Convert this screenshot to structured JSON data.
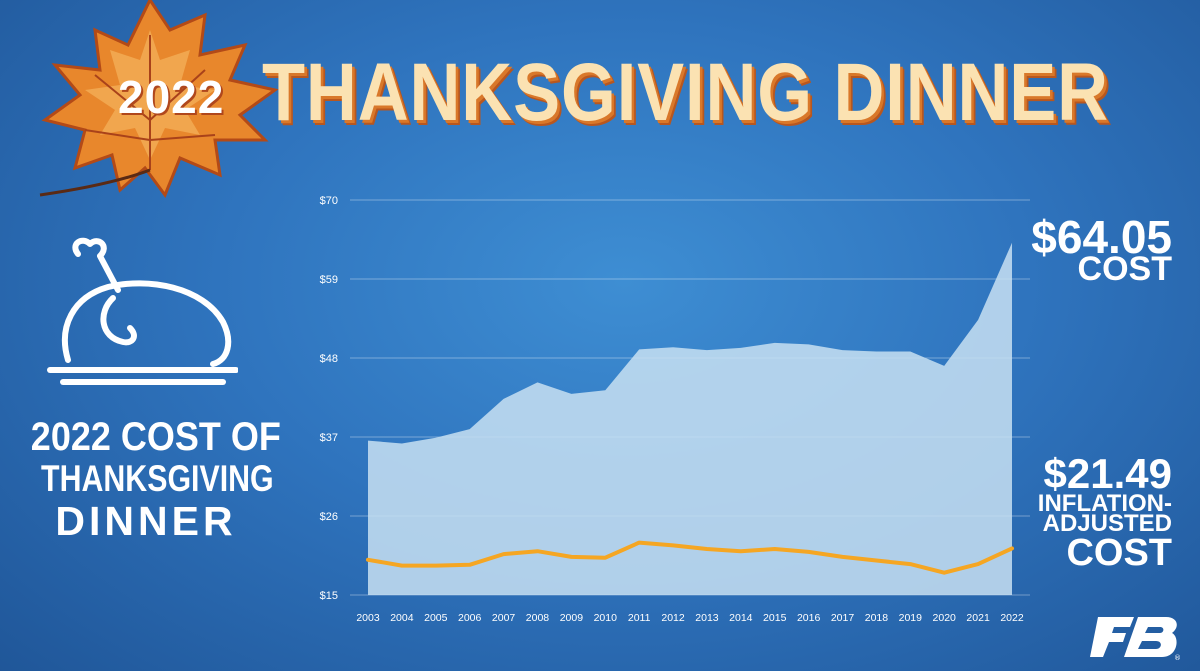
{
  "header": {
    "year": "2022",
    "title": "THANKSGIVING DINNER"
  },
  "side_title": {
    "line1": "2022 COST OF",
    "line2": "THANKSGIVING",
    "line3": "DINNER"
  },
  "callouts": {
    "cost_value": "$64.05",
    "cost_label": "COST",
    "adjusted_value": "$21.49",
    "adjusted_label_1": "INFLATION-",
    "adjusted_label_2": "ADJUSTED",
    "adjusted_label_3": "COST"
  },
  "icons": {
    "leaf": "maple-leaf-icon",
    "turkey": "roast-turkey-icon",
    "logo": "farm-bureau-logo"
  },
  "colors": {
    "area_fill": "#c8e1f2",
    "line": "#f5a623",
    "title": "#fbe2b2"
  },
  "chart_data": {
    "type": "area",
    "x": [
      "2003",
      "2004",
      "2005",
      "2006",
      "2007",
      "2008",
      "2009",
      "2010",
      "2011",
      "2012",
      "2013",
      "2014",
      "2015",
      "2016",
      "2017",
      "2018",
      "2019",
      "2020",
      "2021",
      "2022"
    ],
    "series": [
      {
        "values": [
          36.5,
          36.1,
          36.9,
          38.1,
          42.3,
          44.6,
          43.0,
          43.5,
          49.2,
          49.5,
          49.1,
          49.4,
          50.1,
          49.9,
          49.1,
          48.9,
          48.9,
          46.9,
          53.3,
          64.05
        ]
      },
      {
        "values": [
          19.9,
          19.1,
          19.1,
          19.2,
          20.7,
          21.1,
          20.3,
          20.2,
          22.3,
          21.9,
          21.4,
          21.1,
          21.4,
          21.0,
          20.3,
          19.8,
          19.3,
          18.1,
          19.3,
          21.49
        ]
      }
    ],
    "y_ticks": [
      "$70",
      "$59",
      "$48",
      "$37",
      "$26",
      "$15"
    ],
    "y_tick_values": [
      70,
      59,
      48,
      37,
      26,
      15
    ],
    "ylim": [
      15,
      70
    ],
    "grid": true
  }
}
